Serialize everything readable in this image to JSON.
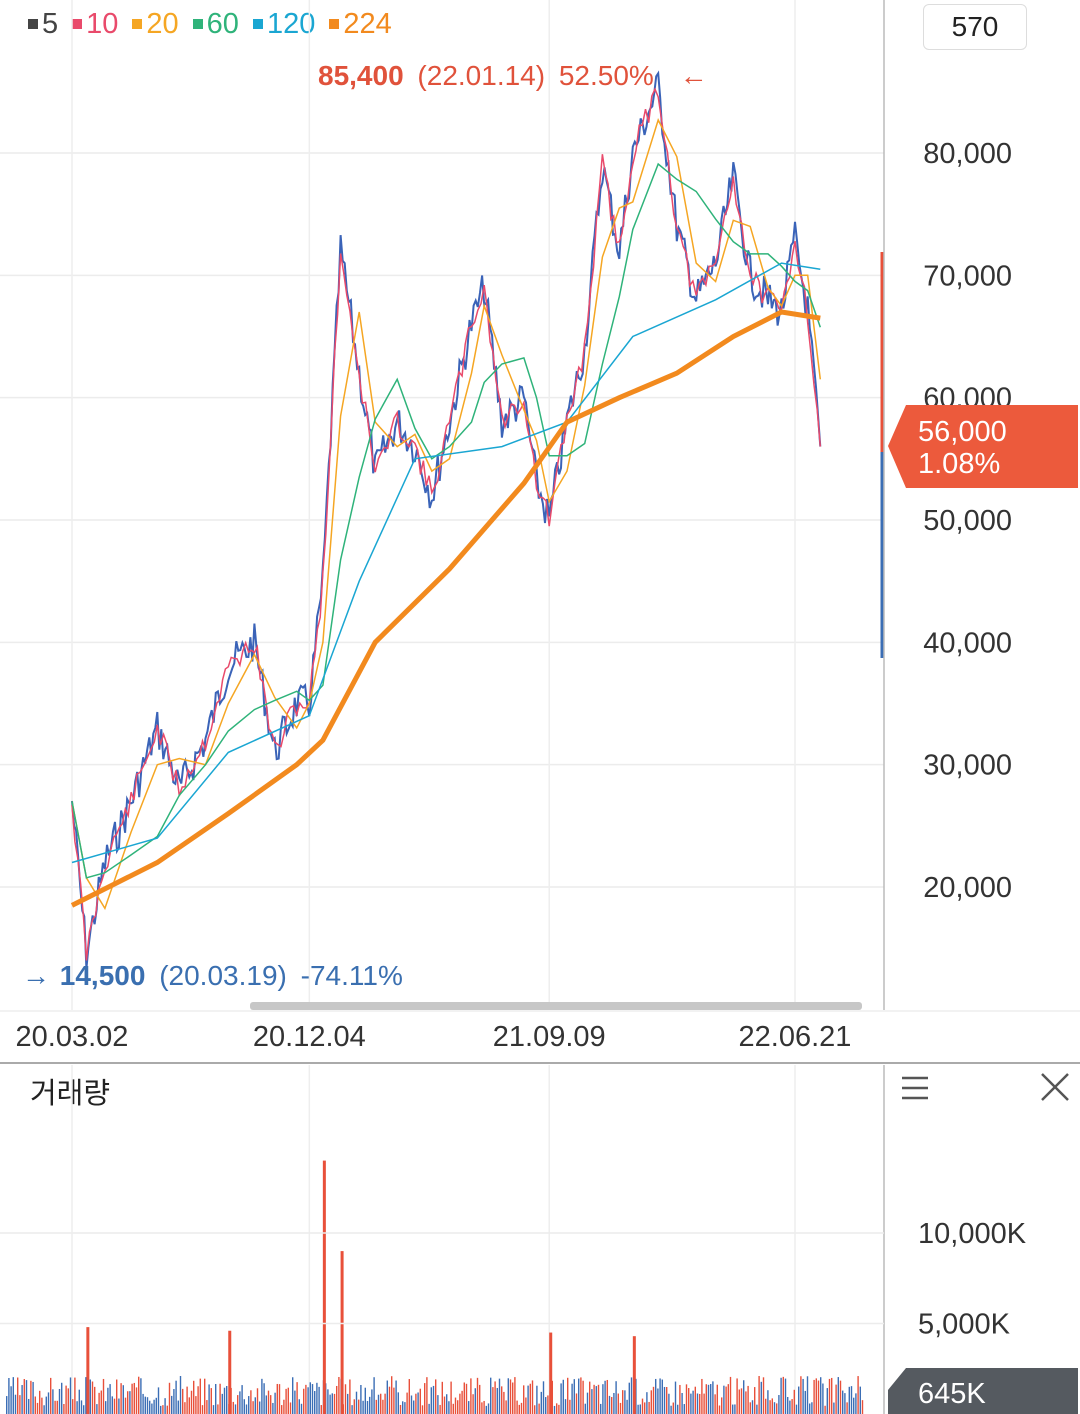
{
  "legend": [
    {
      "label": "5",
      "color": "#444444"
    },
    {
      "label": "10",
      "color": "#e94a6b"
    },
    {
      "label": "20",
      "color": "#f5a623"
    },
    {
      "label": "60",
      "color": "#2fb37a"
    },
    {
      "label": "120",
      "color": "#1aa6d2"
    },
    {
      "label": "224",
      "color": "#f28a1e"
    }
  ],
  "count_box": "570",
  "high_label": {
    "value": "85,400",
    "date": "(22.01.14)",
    "pct": "52.50%",
    "arrow": "←",
    "color": "#e0523b"
  },
  "low_label": {
    "arrow": "→",
    "value": "14,500",
    "date": "(20.03.19)",
    "pct": "-74.11%",
    "color": "#3a6fb0"
  },
  "current_price": {
    "value": "56,000",
    "pct": "1.08%",
    "color": "#ec5a3c"
  },
  "volume_title": "거래량",
  "volume_current": "645K",
  "chart_data": [
    {
      "type": "line",
      "y_ticks": [
        "80,000",
        "70,000",
        "60,000",
        "50,000",
        "40,000",
        "30,000",
        "20,000"
      ],
      "y_tick_values": [
        80000,
        70000,
        60000,
        50000,
        40000,
        30000,
        20000
      ],
      "x_ticks": [
        "20.03.02",
        "20.12.04",
        "21.09.09",
        "22.06.21"
      ],
      "ylim": [
        12000,
        88000
      ],
      "grid": true,
      "price_points": [
        [
          "20.03.02",
          27000
        ],
        [
          "20.03.19",
          14500
        ],
        [
          "20.04.10",
          22000
        ],
        [
          "20.05.10",
          27000
        ],
        [
          "20.06.10",
          33000
        ],
        [
          "20.07.05",
          28000
        ],
        [
          "20.08.05",
          32000
        ],
        [
          "20.09.01",
          38000
        ],
        [
          "20.10.01",
          40000
        ],
        [
          "20.10.25",
          31000
        ],
        [
          "20.11.20",
          35000
        ],
        [
          "20.12.04",
          35000
        ],
        [
          "20.12.20",
          45000
        ],
        [
          "21.01.10",
          72000
        ],
        [
          "21.02.01",
          62000
        ],
        [
          "21.02.20",
          54000
        ],
        [
          "21.03.15",
          58000
        ],
        [
          "21.04.05",
          56000
        ],
        [
          "21.04.25",
          52000
        ],
        [
          "21.05.15",
          58000
        ],
        [
          "21.06.10",
          66000
        ],
        [
          "21.06.25",
          69000
        ],
        [
          "21.07.15",
          58000
        ],
        [
          "21.08.10",
          60000
        ],
        [
          "21.08.25",
          53000
        ],
        [
          "21.09.09",
          50000
        ],
        [
          "21.09.30",
          58000
        ],
        [
          "21.10.20",
          64000
        ],
        [
          "21.11.10",
          79000
        ],
        [
          "21.11.30",
          72000
        ],
        [
          "21.12.15",
          80000
        ],
        [
          "22.01.14",
          85400
        ],
        [
          "22.02.05",
          74000
        ],
        [
          "22.02.28",
          68000
        ],
        [
          "22.03.20",
          71000
        ],
        [
          "22.04.10",
          78000
        ],
        [
          "22.04.30",
          70000
        ],
        [
          "22.05.20",
          68000
        ],
        [
          "22.06.05",
          67000
        ],
        [
          "22.06.21",
          73000
        ],
        [
          "22.07.05",
          67000
        ],
        [
          "22.07.20",
          56000
        ]
      ],
      "ma_series": [
        {
          "name": "224",
          "color": "#f28a1e",
          "values": [
            [
              "20.03.02",
              18500
            ],
            [
              "20.06.10",
              22000
            ],
            [
              "20.09.01",
              26000
            ],
            [
              "20.11.20",
              30000
            ],
            [
              "20.12.20",
              32000
            ],
            [
              "21.02.20",
              40000
            ],
            [
              "21.05.15",
              46000
            ],
            [
              "21.08.10",
              53000
            ],
            [
              "21.09.30",
              58000
            ],
            [
              "21.11.30",
              60000
            ],
            [
              "22.02.05",
              62000
            ],
            [
              "22.04.10",
              65000
            ],
            [
              "22.06.05",
              67000
            ],
            [
              "22.07.20",
              66500
            ]
          ]
        },
        {
          "name": "120",
          "color": "#1aa6d2",
          "values": [
            [
              "20.03.02",
              22000
            ],
            [
              "20.06.10",
              24000
            ],
            [
              "20.09.01",
              31000
            ],
            [
              "20.12.04",
              34000
            ],
            [
              "21.02.01",
              45000
            ],
            [
              "21.04.05",
              55000
            ],
            [
              "21.07.15",
              56000
            ],
            [
              "21.09.30",
              58000
            ],
            [
              "21.12.15",
              65000
            ],
            [
              "22.03.20",
              68000
            ],
            [
              "22.06.05",
              71000
            ],
            [
              "22.07.20",
              70500
            ]
          ]
        }
      ]
    },
    {
      "type": "bar",
      "title": "거래량",
      "y_ticks": [
        "10,000K",
        "5,000K"
      ],
      "y_tick_values": [
        10000,
        5000
      ],
      "ylim": [
        0,
        15000
      ],
      "spikes": [
        [
          "20.12.20",
          14000
        ],
        [
          "21.01.10",
          9000
        ],
        [
          "20.03.19",
          4800
        ],
        [
          "20.09.01",
          4600
        ],
        [
          "21.09.09",
          4500
        ],
        [
          "21.12.15",
          4300
        ]
      ],
      "current": 645
    }
  ]
}
